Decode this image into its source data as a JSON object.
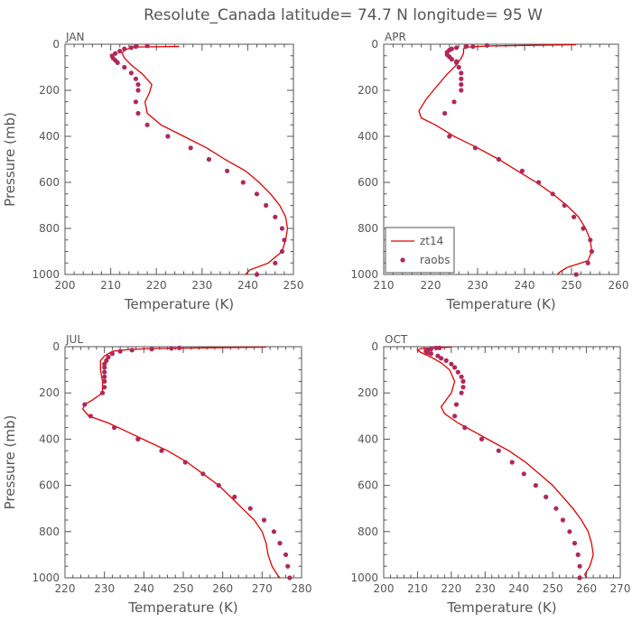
{
  "title": "Resolute_Canada   latitude= 74.7 N longitude= 95 W",
  "colors": {
    "model": "#e00000",
    "obs": "#b0285a",
    "axis": "#555555"
  },
  "chart_data": [
    {
      "type": "line",
      "panel": "JAN",
      "xlabel": "Temperature (K)",
      "ylabel": "Pressure (mb)",
      "xlim": [
        200,
        250
      ],
      "ylim": [
        1000,
        0
      ],
      "xticks": [
        200,
        210,
        220,
        230,
        240,
        250
      ],
      "yticks": [
        0,
        200,
        400,
        600,
        800,
        1000
      ],
      "y_inverted": true,
      "series": [
        {
          "name": "zt14",
          "kind": "line",
          "points": [
            [
              225,
              10
            ],
            [
              215,
              12
            ],
            [
              213,
              25
            ],
            [
              212.5,
              40
            ],
            [
              213,
              60
            ],
            [
              214.5,
              90
            ],
            [
              217,
              130
            ],
            [
              219,
              175
            ],
            [
              218.5,
              210
            ],
            [
              217.5,
              250
            ],
            [
              218,
              300
            ],
            [
              221,
              350
            ],
            [
              226,
              400
            ],
            [
              231,
              450
            ],
            [
              235,
              500
            ],
            [
              239.5,
              550
            ],
            [
              242.5,
              600
            ],
            [
              245,
              650
            ],
            [
              247,
              700
            ],
            [
              248.3,
              750
            ],
            [
              248.7,
              800
            ],
            [
              248.3,
              850
            ],
            [
              247.5,
              900
            ],
            [
              244.5,
              950
            ],
            [
              240.5,
              980
            ],
            [
              239.5,
              1000
            ]
          ]
        },
        {
          "name": "raobs",
          "kind": "scatter",
          "points": [
            [
              218,
              7
            ],
            [
              215.5,
              10
            ],
            [
              214.5,
              15
            ],
            [
              213,
              20
            ],
            [
              212,
              30
            ],
            [
              211,
              40
            ],
            [
              210.3,
              50
            ],
            [
              210.5,
              60
            ],
            [
              211,
              70
            ],
            [
              211.5,
              80
            ],
            [
              213,
              100
            ],
            [
              214.5,
              125
            ],
            [
              215.5,
              150
            ],
            [
              216,
              175
            ],
            [
              216,
              200
            ],
            [
              215.5,
              250
            ],
            [
              216,
              300
            ],
            [
              218,
              350
            ],
            [
              222.5,
              400
            ],
            [
              227.5,
              450
            ],
            [
              231.5,
              500
            ],
            [
              235.5,
              550
            ],
            [
              239,
              600
            ],
            [
              242,
              650
            ],
            [
              244,
              700
            ],
            [
              246,
              750
            ],
            [
              247.5,
              800
            ],
            [
              248,
              850
            ],
            [
              247.5,
              900
            ],
            [
              246,
              950
            ],
            [
              242,
              1000
            ]
          ]
        }
      ]
    },
    {
      "type": "line",
      "panel": "APR",
      "xlabel": "Temperature (K)",
      "ylabel": "",
      "xlim": [
        210,
        260
      ],
      "ylim": [
        1000,
        0
      ],
      "xticks": [
        210,
        220,
        230,
        240,
        250,
        260
      ],
      "yticks": [
        0,
        200,
        400,
        600,
        800,
        1000
      ],
      "y_inverted": true,
      "legend": {
        "position": "bottom-left",
        "entries": [
          "zt14",
          "raobs"
        ]
      },
      "series": [
        {
          "name": "zt14",
          "kind": "line",
          "points": [
            [
              251,
              2
            ],
            [
              240,
              5
            ],
            [
              232,
              8
            ],
            [
              228,
              12
            ],
            [
              227,
              20
            ],
            [
              227,
              40
            ],
            [
              226.5,
              60
            ],
            [
              225.5,
              90
            ],
            [
              223.5,
              130
            ],
            [
              221,
              190
            ],
            [
              219,
              240
            ],
            [
              217.5,
              290
            ],
            [
              218,
              320
            ],
            [
              221,
              350
            ],
            [
              225,
              400
            ],
            [
              230,
              450
            ],
            [
              234.5,
              500
            ],
            [
              238.5,
              550
            ],
            [
              242.5,
              600
            ],
            [
              246,
              650
            ],
            [
              249,
              700
            ],
            [
              251.5,
              750
            ],
            [
              253,
              800
            ],
            [
              254,
              850
            ],
            [
              254.3,
              900
            ],
            [
              253.5,
              940
            ],
            [
              249,
              970
            ],
            [
              247.5,
              990
            ],
            [
              247,
              1000
            ]
          ]
        },
        {
          "name": "raobs",
          "kind": "scatter",
          "points": [
            [
              232,
              5
            ],
            [
              229,
              10
            ],
            [
              227.5,
              10
            ],
            [
              225.5,
              15
            ],
            [
              224.5,
              20
            ],
            [
              224,
              25
            ],
            [
              223.5,
              35
            ],
            [
              223.5,
              45
            ],
            [
              224,
              55
            ],
            [
              224.5,
              65
            ],
            [
              225.5,
              75
            ],
            [
              225.5,
              80
            ],
            [
              226,
              100
            ],
            [
              226.5,
              125
            ],
            [
              226.5,
              150
            ],
            [
              226.5,
              175
            ],
            [
              226.5,
              200
            ],
            [
              225,
              250
            ],
            [
              223,
              300
            ],
            [
              224,
              400
            ],
            [
              229.5,
              450
            ],
            [
              234.5,
              500
            ],
            [
              239.5,
              550
            ],
            [
              243,
              600
            ],
            [
              246,
              650
            ],
            [
              248.5,
              700
            ],
            [
              250.5,
              750
            ],
            [
              252.5,
              800
            ],
            [
              254,
              850
            ],
            [
              254.3,
              900
            ],
            [
              253.5,
              950
            ],
            [
              251,
              1000
            ]
          ]
        }
      ]
    },
    {
      "type": "line",
      "panel": "JUL",
      "xlabel": "Temperature (K)",
      "ylabel": "Pressure (mb)",
      "xlim": [
        220,
        280
      ],
      "ylim": [
        1000,
        0
      ],
      "xticks": [
        220,
        230,
        240,
        250,
        260,
        270,
        280
      ],
      "yticks": [
        0,
        200,
        400,
        600,
        800,
        1000
      ],
      "y_inverted": true,
      "series": [
        {
          "name": "zt14",
          "kind": "line",
          "points": [
            [
              271,
              2
            ],
            [
              255,
              5
            ],
            [
              242,
              8
            ],
            [
              236,
              12
            ],
            [
              232,
              20
            ],
            [
              230,
              40
            ],
            [
              229,
              60
            ],
            [
              229,
              100
            ],
            [
              229.5,
              150
            ],
            [
              229.5,
              200
            ],
            [
              227,
              230
            ],
            [
              225,
              250
            ],
            [
              224.5,
              270
            ],
            [
              226,
              300
            ],
            [
              231,
              330
            ],
            [
              236,
              370
            ],
            [
              241,
              410
            ],
            [
              246,
              450
            ],
            [
              251,
              500
            ],
            [
              255,
              550
            ],
            [
              259,
              600
            ],
            [
              262,
              650
            ],
            [
              265,
              700
            ],
            [
              268,
              750
            ],
            [
              270,
              800
            ],
            [
              271,
              850
            ],
            [
              271.5,
              900
            ],
            [
              272.5,
              950
            ],
            [
              274,
              990
            ],
            [
              274.5,
              1000
            ]
          ]
        },
        {
          "name": "raobs",
          "kind": "scatter",
          "points": [
            [
              249,
              5
            ],
            [
              247,
              7
            ],
            [
              242,
              10
            ],
            [
              237,
              15
            ],
            [
              234,
              20
            ],
            [
              232,
              30
            ],
            [
              231,
              45
            ],
            [
              230.5,
              60
            ],
            [
              230,
              75
            ],
            [
              230,
              90
            ],
            [
              230,
              110
            ],
            [
              230,
              130
            ],
            [
              230,
              150
            ],
            [
              230,
              175
            ],
            [
              229.5,
              200
            ],
            [
              225,
              250
            ],
            [
              226.5,
              300
            ],
            [
              232.5,
              350
            ],
            [
              238.5,
              400
            ],
            [
              244.5,
              450
            ],
            [
              250.5,
              500
            ],
            [
              255,
              550
            ],
            [
              259,
              600
            ],
            [
              263,
              650
            ],
            [
              267,
              700
            ],
            [
              270.5,
              750
            ],
            [
              273,
              800
            ],
            [
              274.5,
              850
            ],
            [
              276,
              900
            ],
            [
              276.5,
              950
            ],
            [
              277,
              1000
            ]
          ]
        }
      ]
    },
    {
      "type": "line",
      "panel": "OCT",
      "xlabel": "Temperature (K)",
      "ylabel": "",
      "xlim": [
        200,
        270
      ],
      "ylim": [
        1000,
        0
      ],
      "xticks": [
        200,
        210,
        220,
        230,
        240,
        250,
        260,
        270
      ],
      "yticks": [
        0,
        200,
        400,
        600,
        800,
        1000
      ],
      "y_inverted": true,
      "series": [
        {
          "name": "zt14",
          "kind": "line",
          "points": [
            [
              220,
              2
            ],
            [
              215,
              5
            ],
            [
              211,
              8
            ],
            [
              210,
              15
            ],
            [
              211,
              25
            ],
            [
              214,
              45
            ],
            [
              217,
              70
            ],
            [
              219.5,
              100
            ],
            [
              221,
              150
            ],
            [
              220,
              200
            ],
            [
              218,
              240
            ],
            [
              217,
              260
            ],
            [
              218,
              290
            ],
            [
              222,
              330
            ],
            [
              227,
              370
            ],
            [
              232,
              410
            ],
            [
              237,
              450
            ],
            [
              242,
              500
            ],
            [
              246,
              550
            ],
            [
              250,
              600
            ],
            [
              253,
              650
            ],
            [
              256,
              700
            ],
            [
              258.5,
              750
            ],
            [
              260.5,
              800
            ],
            [
              261.5,
              850
            ],
            [
              262,
              900
            ],
            [
              261,
              950
            ],
            [
              259.5,
              985
            ],
            [
              260,
              1000
            ]
          ]
        },
        {
          "name": "raobs",
          "kind": "scatter",
          "points": [
            [
              216.5,
              5
            ],
            [
              215.5,
              5
            ],
            [
              214,
              10
            ],
            [
              213,
              15
            ],
            [
              212.5,
              20
            ],
            [
              213,
              25
            ],
            [
              214,
              30
            ],
            [
              216,
              40
            ],
            [
              217,
              50
            ],
            [
              218.5,
              60
            ],
            [
              220,
              75
            ],
            [
              221,
              90
            ],
            [
              222,
              110
            ],
            [
              223,
              130
            ],
            [
              223.5,
              150
            ],
            [
              223.5,
              175
            ],
            [
              223,
              200
            ],
            [
              221.5,
              250
            ],
            [
              221,
              300
            ],
            [
              224,
              350
            ],
            [
              229,
              400
            ],
            [
              234,
              450
            ],
            [
              238,
              500
            ],
            [
              241.5,
              550
            ],
            [
              245,
              600
            ],
            [
              248,
              650
            ],
            [
              251,
              700
            ],
            [
              253,
              750
            ],
            [
              255,
              800
            ],
            [
              256.5,
              850
            ],
            [
              257.5,
              900
            ],
            [
              258,
              950
            ],
            [
              258,
              1000
            ]
          ]
        }
      ]
    }
  ]
}
